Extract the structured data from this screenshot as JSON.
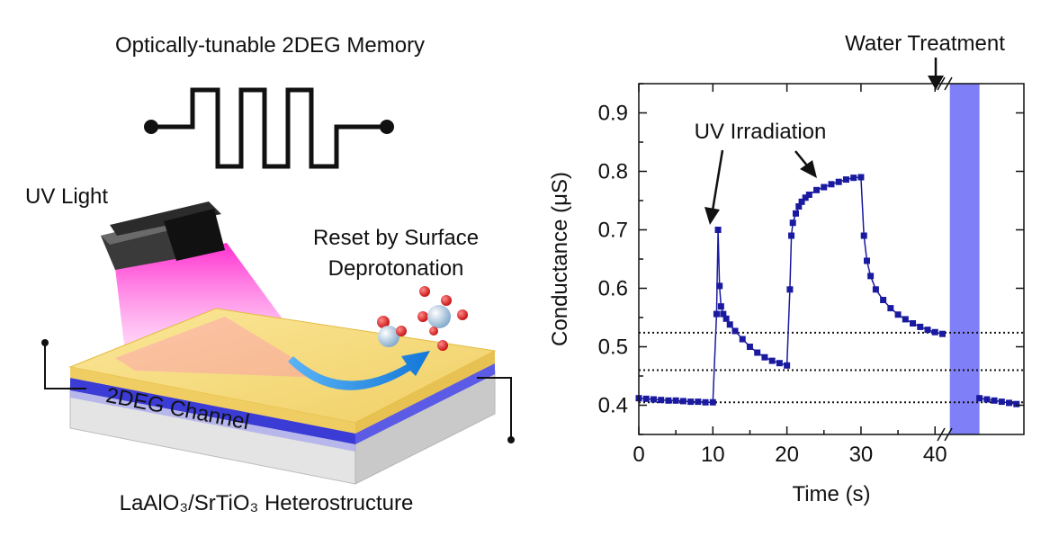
{
  "schematic": {
    "title": "Optically-tunable 2DEG Memory",
    "uv_light_label": "UV Light",
    "reset_label_line1": "Reset by Surface",
    "reset_label_line2": "Deprotonation",
    "channel_label": "2DEG Channel",
    "heterostructure_label": "LaAlO₃/SrTiO₃ Heterostructure",
    "colors": {
      "film": "#f5dc7a",
      "channel": "#3b3bd6",
      "substrate": "#dcdcdc",
      "uv_beam": "#ff2fd0",
      "arrow": "#1e8fe0",
      "oxygen": "#dd1f1f",
      "proton": "#a9c4dc"
    }
  },
  "chart_data": {
    "type": "line",
    "title": "",
    "xlabel": "Time (s)",
    "ylabel": "Conductance (μS)",
    "xlim": [
      0,
      52
    ],
    "ylim": [
      0.35,
      0.95
    ],
    "xticks": [
      0,
      10,
      20,
      30,
      40
    ],
    "xticklabels": [
      "0",
      "10",
      "20",
      "30",
      "40"
    ],
    "yticks": [
      0.4,
      0.5,
      0.6,
      0.7,
      0.8,
      0.9
    ],
    "yticklabels": [
      "0.4",
      "0.5",
      "0.6",
      "0.7",
      "0.8",
      "0.9"
    ],
    "series_color": "#1a1aa0",
    "series": [
      {
        "x": [
          0,
          1,
          2,
          3,
          4,
          5,
          6,
          7,
          8,
          9,
          10,
          10.5,
          10.7,
          10.9,
          11.1,
          11.4,
          11.8,
          12.3,
          13,
          14,
          15,
          16,
          17,
          18,
          19,
          20,
          20.4,
          20.6,
          20.8,
          21.2,
          21.6,
          22,
          22.5,
          23,
          24,
          25,
          26,
          27,
          28,
          29,
          30,
          30.4,
          30.8,
          31.3,
          32,
          33,
          34,
          35,
          36,
          37,
          38,
          39,
          40,
          41,
          46,
          47,
          48,
          49,
          50,
          51
        ],
        "y": [
          0.412,
          0.411,
          0.41,
          0.409,
          0.408,
          0.408,
          0.407,
          0.406,
          0.406,
          0.405,
          0.405,
          0.556,
          0.7,
          0.604,
          0.569,
          0.556,
          0.548,
          0.538,
          0.527,
          0.513,
          0.5,
          0.49,
          0.482,
          0.476,
          0.472,
          0.468,
          0.598,
          0.69,
          0.712,
          0.728,
          0.74,
          0.748,
          0.755,
          0.76,
          0.768,
          0.773,
          0.778,
          0.782,
          0.786,
          0.789,
          0.79,
          0.69,
          0.647,
          0.621,
          0.598,
          0.58,
          0.566,
          0.555,
          0.547,
          0.54,
          0.534,
          0.529,
          0.525,
          0.522,
          0.412,
          0.41,
          0.408,
          0.406,
          0.404,
          0.402
        ]
      }
    ],
    "reference_lines": [
      0.524,
      0.46,
      0.405
    ],
    "highlight_band": {
      "x": [
        42,
        46
      ],
      "color": "#7f7ff7"
    },
    "annotations": {
      "uv_irradiation": "UV Irradiation",
      "water_treatment": "Water Treatment"
    }
  }
}
